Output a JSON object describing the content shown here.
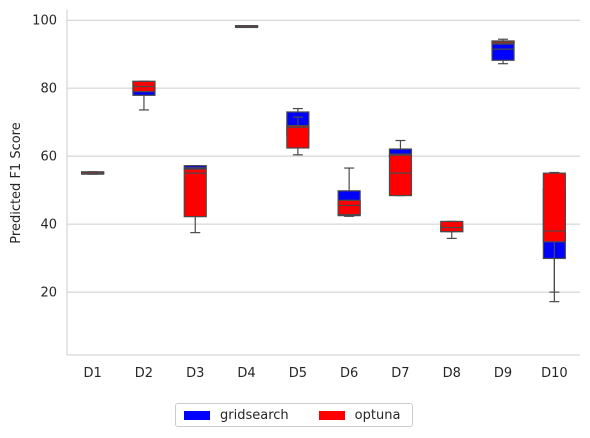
{
  "chart_data": {
    "type": "box",
    "ylabel": "Predicted F1 Score",
    "xlabel": "",
    "ylim": [
      1.5,
      103
    ],
    "yticks": [
      20,
      40,
      60,
      80,
      100
    ],
    "grid": "horizontal",
    "legend_position": "bottom-center",
    "categories": [
      "D1",
      "D2",
      "D3",
      "D4",
      "D5",
      "D6",
      "D7",
      "D8",
      "D9",
      "D10"
    ],
    "series": [
      {
        "name": "gridsearch",
        "color": "#0000ff",
        "boxes": [
          {
            "min": 54.8,
            "q1": 54.8,
            "median": 55.0,
            "q3": 55.4,
            "max": 55.4
          },
          {
            "min": 73.6,
            "q1": 77.9,
            "median": 80.0,
            "q3": 82.0,
            "max": 82.0
          },
          {
            "min": 56.2,
            "q1": 56.2,
            "median": 56.6,
            "q3": 57.2,
            "max": 57.2
          },
          {
            "min": 98.0,
            "q1": 98.0,
            "median": 98.2,
            "q3": 98.4,
            "max": 98.4
          },
          {
            "min": 66.0,
            "q1": 66.0,
            "median": 68.8,
            "q3": 73.0,
            "max": 74.0
          },
          {
            "min": 42.3,
            "q1": 42.5,
            "median": 44.0,
            "q3": 49.8,
            "max": 56.5
          },
          {
            "min": 59.8,
            "q1": 59.8,
            "median": 60.6,
            "q3": 62.1,
            "max": 64.6
          },
          {
            "min": 37.8,
            "q1": 37.8,
            "median": 38.3,
            "q3": 39.6,
            "max": 39.6
          },
          {
            "min": 87.2,
            "q1": 88.2,
            "median": 91.5,
            "q3": 93.9,
            "max": 94.4
          },
          {
            "min": 17.2,
            "q1": 29.9,
            "median": 35.0,
            "q3": 50.5,
            "max": 55.2
          }
        ]
      },
      {
        "name": "optuna",
        "color": "#ff0000",
        "boxes": [
          {
            "min": 54.7,
            "q1": 54.7,
            "median": 54.9,
            "q3": 55.3,
            "max": 55.3
          },
          {
            "min": 79.0,
            "q1": 79.0,
            "median": 80.5,
            "q3": 82.0,
            "max": 82.0
          },
          {
            "min": 37.5,
            "q1": 42.2,
            "median": 55.0,
            "q3": 56.2,
            "max": 56.2
          },
          {
            "min": 98.1,
            "q1": 98.1,
            "median": 98.2,
            "q3": 98.3,
            "max": 98.3
          },
          {
            "min": 60.4,
            "q1": 62.4,
            "median": 68.5,
            "q3": 69.0,
            "max": 71.5
          },
          {
            "min": 42.8,
            "q1": 42.8,
            "median": 45.5,
            "q3": 47.0,
            "max": 47.0
          },
          {
            "min": 48.4,
            "q1": 48.4,
            "median": 55.0,
            "q3": 60.3,
            "max": 60.3
          },
          {
            "min": 35.8,
            "q1": 37.8,
            "median": 39.0,
            "q3": 40.8,
            "max": 40.8
          },
          {
            "min": 93.0,
            "q1": 93.0,
            "median": 93.3,
            "q3": 93.8,
            "max": 93.8
          },
          {
            "min": 20.0,
            "q1": 34.8,
            "median": 38.0,
            "q3": 55.0,
            "max": 55.0
          }
        ]
      }
    ]
  }
}
